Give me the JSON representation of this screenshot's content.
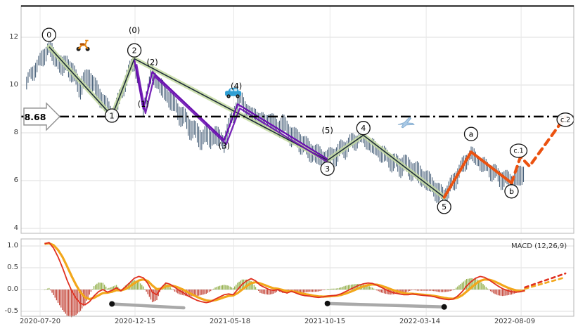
{
  "colors": {
    "bars": "#35506b",
    "wave_under": "#c6dca2",
    "wave_core": "#1f2d3a",
    "alternate": "#6a0fb0",
    "corrective": "#eb5210",
    "hline": "#000000",
    "macd": "#e03020",
    "signal": "#f2a71b",
    "hist_pos": "#8aa83c",
    "hist_neg": "#c0392b",
    "trend": "#a9a9a9",
    "dot": "#111111",
    "grid": "#dedede",
    "border": "#b5b5b5",
    "tick_text": "#3a3a3a"
  },
  "chart_data": {
    "x_tick_labels": [
      "2020-07-20",
      "2020-12-15",
      "2021-05-18",
      "2021-10-15",
      "2022-03-14",
      "2022-08-09"
    ],
    "panels": [
      {
        "name": "price",
        "type": "line",
        "style": "ohlc-bars-with-elliott-wave-overlay",
        "yticks": [
          12,
          10,
          8,
          6,
          4
        ],
        "ytick_labels": [
          "12",
          "10",
          "8",
          "6",
          "4"
        ],
        "ylim": [
          3.8,
          13.3
        ],
        "series": {
          "price_weekly": {
            "start": "2020-06-29",
            "step_days": 7,
            "closes": [
              10.2,
              10.5,
              10.8,
              11.0,
              11.3,
              11.6,
              11.2,
              11.0,
              10.7,
              10.9,
              10.5,
              10.2,
              9.9,
              10.1,
              10.3,
              9.9,
              9.6,
              9.3,
              9.0,
              8.7,
              9.1,
              9.6,
              10.2,
              10.7,
              11.1,
              10.1,
              9.1,
              9.9,
              10.5,
              10.2,
              9.9,
              9.6,
              9.4,
              9.1,
              8.8,
              8.6,
              8.3,
              8.1,
              7.9,
              7.7,
              7.9,
              7.7,
              7.9,
              7.7,
              7.6,
              8.2,
              8.8,
              9.2,
              9.4,
              9.1,
              8.8,
              8.9,
              8.6,
              8.5,
              8.6,
              8.4,
              8.2,
              8.4,
              8.1,
              7.9,
              7.7,
              7.6,
              7.4,
              7.2,
              7.1,
              7.0,
              6.9,
              6.85,
              7.0,
              7.1,
              7.3,
              7.4,
              7.6,
              7.7,
              7.8,
              7.9,
              7.6,
              7.5,
              7.3,
              7.2,
              7.0,
              6.9,
              6.7,
              6.6,
              6.7,
              6.5,
              6.4,
              6.3,
              6.1,
              6.0,
              5.8,
              5.6,
              5.4,
              5.3,
              5.6,
              5.9,
              6.3,
              6.6,
              6.9,
              7.2,
              7.0,
              6.8,
              6.7,
              6.5,
              6.4,
              6.2,
              6.1,
              6.0,
              5.9,
              6.0,
              6.2,
              6.3
            ]
          }
        },
        "hline": {
          "value": 8.68,
          "label": "8.68",
          "style": "dashdot"
        },
        "waves": {
          "primary": {
            "points": [
              [
                "2020-08-03",
                11.6
              ],
              [
                "2020-11-09",
                8.7
              ],
              [
                "2020-12-14",
                11.1
              ],
              [
                "2021-10-11",
                6.85
              ],
              [
                "2021-12-06",
                7.9
              ],
              [
                "2022-04-11",
                5.3
              ]
            ]
          },
          "alternate": {
            "points": [
              [
                "2020-12-14",
                11.05
              ],
              [
                "2020-12-28",
                9.0
              ],
              [
                "2021-01-11",
                10.55
              ],
              [
                "2021-05-03",
                7.7
              ],
              [
                "2021-05-24",
                9.2
              ],
              [
                "2021-10-11",
                6.9
              ]
            ]
          },
          "corrective_solid": {
            "points": [
              [
                "2022-04-11",
                5.3
              ],
              [
                "2022-05-23",
                7.2
              ],
              [
                "2022-07-25",
                5.9
              ]
            ]
          },
          "corrective_dashed": {
            "points": [
              [
                "2022-07-25",
                5.9
              ],
              [
                "2022-08-08",
                7.0
              ],
              [
                "2022-08-22",
                6.6
              ],
              [
                "2022-10-17",
                8.68
              ]
            ]
          }
        },
        "wave_labels_circled": [
          {
            "text": "0",
            "at": [
              "2020-08-03",
              12.1
            ]
          },
          {
            "text": "1",
            "at": [
              "2020-11-09",
              8.72
            ]
          },
          {
            "text": "2",
            "at": [
              "2020-12-14",
              11.45
            ]
          },
          {
            "text": "3",
            "at": [
              "2021-10-11",
              6.5
            ]
          },
          {
            "text": "4",
            "at": [
              "2021-12-06",
              8.2
            ]
          },
          {
            "text": "5",
            "at": [
              "2022-04-11",
              4.9
            ]
          },
          {
            "text": "a",
            "at": [
              "2022-05-23",
              7.95
            ]
          },
          {
            "text": "b",
            "at": [
              "2022-07-25",
              5.55
            ]
          },
          {
            "text": "c.1",
            "at": [
              "2022-08-05",
              7.25
            ]
          },
          {
            "text": "c.2",
            "at": [
              "2022-10-17",
              8.55
            ]
          }
        ],
        "wave_labels_plain": [
          {
            "text": "(0)",
            "at": [
              "2020-12-14",
              12.3
            ]
          },
          {
            "text": "(1)",
            "at": [
              "2020-12-28",
              9.2
            ]
          },
          {
            "text": "(2)",
            "at": [
              "2021-01-11",
              10.95
            ]
          },
          {
            "text": "(3)",
            "at": [
              "2021-05-03",
              7.45
            ]
          },
          {
            "text": "(4)",
            "at": [
              "2021-05-22",
              9.95
            ]
          },
          {
            "text": "(5)",
            "at": [
              "2021-10-11",
              8.1
            ]
          }
        ],
        "emojis": [
          {
            "name": "scooter-icon",
            "at": [
              "2020-09-25",
              11.7
            ]
          },
          {
            "name": "car-icon",
            "at": [
              "2021-05-17",
              9.7
            ]
          },
          {
            "name": "airplane-icon",
            "at": [
              "2022-02-10",
              8.4
            ]
          }
        ]
      },
      {
        "name": "macd",
        "type": "line",
        "style": "macd-with-histogram",
        "label": "MACD (12,26,9)",
        "params": "12,26,9",
        "yticks": [
          1.0,
          0.5,
          0.0,
          -0.5
        ],
        "ytick_labels": [
          "1.0",
          "0.5",
          "0.0",
          "-0.5"
        ],
        "macd_weekly": {
          "start": "2020-07-27",
          "step_days": 7,
          "values": [
            1.05,
            1.08,
            0.95,
            0.75,
            0.5,
            0.22,
            -0.02,
            -0.2,
            -0.32,
            -0.35,
            -0.28,
            -0.15,
            -0.05,
            0.0,
            -0.06,
            -0.02,
            0.04,
            -0.03,
            0.06,
            0.16,
            0.26,
            0.3,
            0.27,
            0.14,
            -0.06,
            -0.12,
            0.04,
            0.15,
            0.12,
            0.05,
            -0.02,
            -0.08,
            -0.15,
            -0.2,
            -0.25,
            -0.28,
            -0.3,
            -0.28,
            -0.22,
            -0.17,
            -0.12,
            -0.1,
            -0.12,
            0.0,
            0.12,
            0.2,
            0.25,
            0.2,
            0.1,
            0.05,
            0.0,
            -0.02,
            0.0,
            -0.05,
            -0.08,
            -0.04,
            -0.08,
            -0.12,
            -0.14,
            -0.15,
            -0.17,
            -0.18,
            -0.17,
            -0.15,
            -0.14,
            -0.13,
            -0.1,
            -0.05,
            0.0,
            0.05,
            0.1,
            0.13,
            0.15,
            0.14,
            0.1,
            0.05,
            0.0,
            -0.05,
            -0.08,
            -0.1,
            -0.12,
            -0.12,
            -0.1,
            -0.12,
            -0.13,
            -0.14,
            -0.15,
            -0.17,
            -0.2,
            -0.22,
            -0.23,
            -0.22,
            -0.15,
            -0.05,
            0.08,
            0.18,
            0.26,
            0.3,
            0.28,
            0.22,
            0.15,
            0.08,
            0.02,
            -0.02,
            -0.05,
            -0.06,
            -0.05,
            -0.02
          ]
        },
        "projection_dashed_macd": [
          [
            "2022-08-15",
            0.05
          ],
          [
            "2022-10-17",
            0.37
          ]
        ],
        "projection_dashed_signal": [
          [
            "2022-08-15",
            0.02
          ],
          [
            "2022-10-17",
            0.28
          ]
        ],
        "trend_segments": [
          {
            "from": [
              "2020-11-09",
              -0.33
            ],
            "to": [
              "2021-03-01",
              -0.42
            ],
            "dots": [
              "from"
            ]
          },
          {
            "from": [
              "2021-10-11",
              -0.32
            ],
            "to": [
              "2022-04-11",
              -0.4
            ],
            "dots": [
              "from",
              "to"
            ]
          }
        ]
      }
    ]
  }
}
